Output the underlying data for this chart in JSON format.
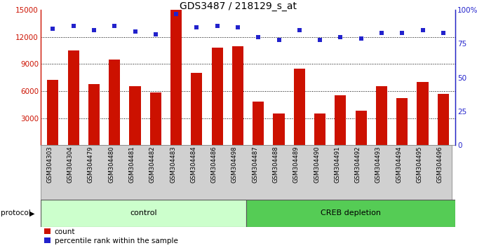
{
  "title": "GDS3487 / 218129_s_at",
  "samples": [
    "GSM304303",
    "GSM304304",
    "GSM304479",
    "GSM304480",
    "GSM304481",
    "GSM304482",
    "GSM304483",
    "GSM304484",
    "GSM304486",
    "GSM304498",
    "GSM304487",
    "GSM304488",
    "GSM304489",
    "GSM304490",
    "GSM304491",
    "GSM304492",
    "GSM304493",
    "GSM304494",
    "GSM304495",
    "GSM304496"
  ],
  "counts": [
    7200,
    10500,
    6800,
    9500,
    6500,
    5800,
    15000,
    8000,
    10800,
    11000,
    4800,
    3500,
    8500,
    3500,
    5500,
    3800,
    6500,
    5200,
    7000,
    5700
  ],
  "percentiles": [
    86,
    88,
    85,
    88,
    84,
    82,
    97,
    87,
    88,
    87,
    80,
    78,
    85,
    78,
    80,
    79,
    83,
    83,
    85,
    83
  ],
  "bar_color": "#cc1100",
  "dot_color": "#2222cc",
  "ylim_left": [
    0,
    15000
  ],
  "ylim_right": [
    0,
    100
  ],
  "yticks_left": [
    3000,
    6000,
    9000,
    12000,
    15000
  ],
  "ytick_labels_left": [
    "3000",
    "6000",
    "9000",
    "12000",
    "15000"
  ],
  "yticks_right": [
    0,
    25,
    50,
    75,
    100
  ],
  "ytick_labels_right": [
    "0",
    "25",
    "50",
    "75",
    "100%"
  ],
  "n_control": 10,
  "n_creb": 10,
  "control_label": "control",
  "creb_label": "CREB depletion",
  "control_bg": "#ccffcc",
  "creb_bg": "#55cc55",
  "protocol_label": "protocol",
  "legend_count": "count",
  "legend_percentile": "percentile rank within the sample",
  "xlabel_area_bg": "#d0d0d0",
  "title_fontsize": 10,
  "tick_fontsize": 7.5,
  "bar_width": 0.55
}
